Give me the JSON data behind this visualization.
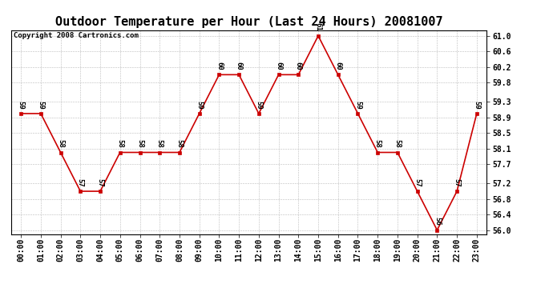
{
  "title": "Outdoor Temperature per Hour (Last 24 Hours) 20081007",
  "copyright": "Copyright 2008 Cartronics.com",
  "hours": [
    "00:00",
    "01:00",
    "02:00",
    "03:00",
    "04:00",
    "05:00",
    "06:00",
    "07:00",
    "08:00",
    "09:00",
    "10:00",
    "11:00",
    "12:00",
    "13:00",
    "14:00",
    "15:00",
    "16:00",
    "17:00",
    "18:00",
    "19:00",
    "20:00",
    "21:00",
    "22:00",
    "23:00"
  ],
  "temps": [
    59,
    59,
    58,
    57,
    57,
    58,
    58,
    58,
    58,
    59,
    60,
    60,
    59,
    60,
    60,
    61,
    60,
    59,
    58,
    58,
    57,
    56,
    57,
    59
  ],
  "line_color": "#cc0000",
  "marker_color": "#cc0000",
  "bg_color": "#ffffff",
  "grid_color": "#bbbbbb",
  "ylim_min": 55.9,
  "ylim_max": 61.15,
  "yticks": [
    56.0,
    56.4,
    56.8,
    57.2,
    57.7,
    58.1,
    58.5,
    58.9,
    59.3,
    59.8,
    60.2,
    60.6,
    61.0
  ],
  "title_fontsize": 11,
  "label_fontsize": 7,
  "annotation_fontsize": 6.5,
  "copyright_fontsize": 6.5
}
